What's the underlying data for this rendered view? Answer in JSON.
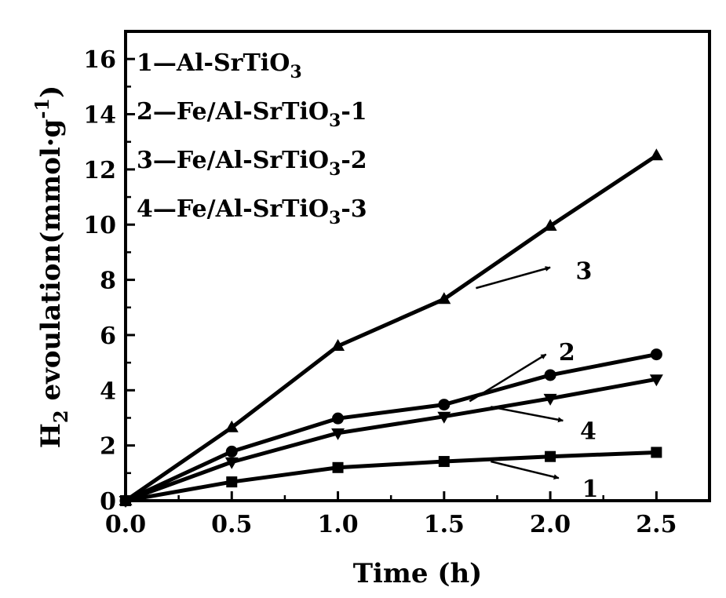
{
  "chart_data": {
    "type": "line",
    "title": "",
    "xlabel": "Time (h)",
    "ylabel_main": "H",
    "ylabel_sub": "2",
    "ylabel_text": " evoulation(mmol·g",
    "ylabel_sup": "-1",
    "ylabel_close": ")",
    "xlim": [
      0.0,
      2.75
    ],
    "ylim": [
      0,
      17
    ],
    "xticks": [
      0.0,
      0.5,
      1.0,
      1.5,
      2.0,
      2.5
    ],
    "xtick_labels": [
      "0.0",
      "0.5",
      "1.0",
      "1.5",
      "2.0",
      "2.5"
    ],
    "yticks": [
      0,
      2,
      4,
      6,
      8,
      10,
      12,
      14,
      16
    ],
    "ytick_labels": [
      "0",
      "2",
      "4",
      "6",
      "8",
      "10",
      "12",
      "14",
      "16"
    ],
    "grid": false,
    "legend_position": "top-left",
    "series": [
      {
        "id": "1",
        "name": "Al-SrTiO3",
        "legend_prefix": "1—Al-SrTiO",
        "legend_sub": "3",
        "legend_suffix": "",
        "marker": "square",
        "x": [
          0.0,
          0.5,
          1.0,
          1.5,
          2.0,
          2.5
        ],
        "y": [
          0.0,
          0.68,
          1.2,
          1.42,
          1.6,
          1.75
        ]
      },
      {
        "id": "2",
        "name": "Fe/Al-SrTiO3-1",
        "legend_prefix": "2—Fe/Al-SrTiO",
        "legend_sub": "3",
        "legend_suffix": "-1",
        "marker": "circle",
        "x": [
          0.0,
          0.5,
          1.0,
          1.5,
          2.0,
          2.5
        ],
        "y": [
          0.0,
          1.78,
          2.98,
          3.48,
          4.55,
          5.3
        ]
      },
      {
        "id": "3",
        "name": "Fe/Al-SrTiO3-2",
        "legend_prefix": "3—Fe/Al-SrTiO",
        "legend_sub": "3",
        "legend_suffix": "-2",
        "marker": "triangle-up",
        "x": [
          0.0,
          0.5,
          1.0,
          1.5,
          2.0,
          2.5
        ],
        "y": [
          0.0,
          2.65,
          5.6,
          7.3,
          9.95,
          12.5
        ]
      },
      {
        "id": "4",
        "name": "Fe/Al-SrTiO3-3",
        "legend_prefix": "4—Fe/Al-SrTiO",
        "legend_sub": "3",
        "legend_suffix": "-3",
        "marker": "triangle-down",
        "x": [
          0.0,
          0.5,
          1.0,
          1.5,
          2.0,
          2.5
        ],
        "y": [
          0.0,
          1.4,
          2.45,
          3.05,
          3.7,
          4.4
        ]
      }
    ],
    "annotations": [
      {
        "text": "3",
        "series": "3",
        "arrow_from": [
          1.65,
          7.7
        ],
        "arrow_to": [
          2.0,
          8.45
        ],
        "text_at": [
          2.12,
          8.35
        ]
      },
      {
        "text": "2",
        "series": "2",
        "arrow_from": [
          1.62,
          3.6
        ],
        "arrow_to": [
          1.98,
          5.3
        ],
        "text_at": [
          2.04,
          5.4
        ]
      },
      {
        "text": "4",
        "series": "4",
        "arrow_from": [
          1.72,
          3.4
        ],
        "arrow_to": [
          2.06,
          2.9
        ],
        "text_at": [
          2.14,
          2.55
        ]
      },
      {
        "text": "1",
        "series": "1",
        "arrow_from": [
          1.72,
          1.42
        ],
        "arrow_to": [
          2.04,
          0.82
        ],
        "text_at": [
          2.15,
          0.45
        ]
      }
    ],
    "colors": {
      "line": "#000000",
      "background": "#ffffff"
    }
  }
}
